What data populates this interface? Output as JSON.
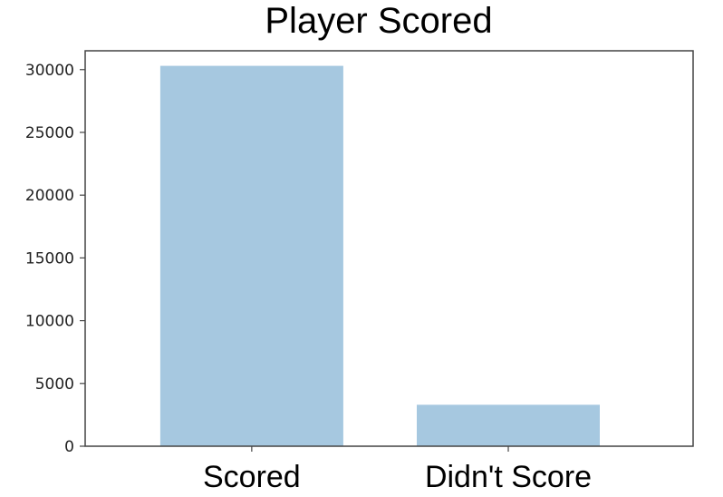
{
  "chart_data": {
    "type": "bar",
    "title": "Player Scored",
    "xlabel": "",
    "ylabel": "",
    "categories": [
      "Scored",
      "Didn't Score"
    ],
    "values": [
      30300,
      3300
    ],
    "ylim": [
      0,
      31500
    ],
    "yticks": [
      0,
      5000,
      10000,
      15000,
      20000,
      25000,
      30000
    ],
    "ytick_labels": [
      "0",
      "5000",
      "10000",
      "15000",
      "20000",
      "25000",
      "30000"
    ],
    "grid": false,
    "legend": "none",
    "bar_color": "#a6c8e0",
    "frame_color": "#444444"
  }
}
